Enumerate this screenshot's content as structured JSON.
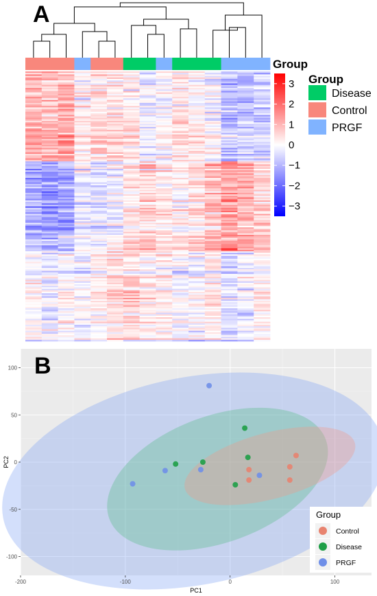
{
  "panel_a": {
    "letter": "A",
    "annotation_label": "Group",
    "legend": {
      "title": "Group",
      "items": [
        {
          "label": "Disease",
          "color": "#00CC66"
        },
        {
          "label": "Control",
          "color": "#F8877C"
        },
        {
          "label": "PRGF",
          "color": "#80B3FF"
        }
      ]
    },
    "colorbar": {
      "ticks": [
        "3",
        "2",
        "1",
        "0",
        "−1",
        "−2",
        "−3"
      ],
      "range": [
        -3.5,
        3.5
      ],
      "low_color": "#0000FF",
      "mid_color": "#FFFFFF",
      "high_color": "#FF0000"
    }
  },
  "panel_b": {
    "letter": "B",
    "legend": {
      "title": "Group",
      "items": [
        {
          "label": "Control",
          "color": "#E8836F"
        },
        {
          "label": "Disease",
          "color": "#1E9E46"
        },
        {
          "label": "PRGF",
          "color": "#6F8FE8"
        }
      ]
    }
  },
  "chart_data": [
    {
      "type": "heatmap",
      "title": "",
      "column_groups": [
        "Control",
        "Control",
        "Control",
        "PRGF",
        "Control",
        "Control",
        "Disease",
        "Disease",
        "PRGF",
        "Disease",
        "Disease",
        "Disease",
        "PRGF",
        "PRGF",
        "PRGF"
      ],
      "group_colors": {
        "Disease": "#00CC66",
        "Control": "#F8877C",
        "PRGF": "#80B3FF"
      },
      "value_range": [
        -3.5,
        3.5
      ],
      "colorbar_ticks": [
        3,
        2,
        1,
        0,
        -1,
        -2,
        -3
      ],
      "row_count": 180,
      "dendrogram": "columns clustered"
    },
    {
      "type": "scatter",
      "title": "",
      "xlabel": "PC1",
      "ylabel": "PC2",
      "xlim": [
        -200,
        135
      ],
      "ylim": [
        -120,
        120
      ],
      "xticks": [
        -200,
        -100,
        0,
        100
      ],
      "yticks": [
        -100,
        -50,
        0,
        50,
        100
      ],
      "grid": true,
      "legend_title": "Group",
      "legend_position": "bottom-right",
      "series": [
        {
          "name": "Control",
          "color": "#E8836F",
          "points": [
            [
              63,
              7
            ],
            [
              57,
              -5
            ],
            [
              57,
              -19
            ],
            [
              18,
              -8
            ],
            [
              18,
              -19
            ]
          ]
        },
        {
          "name": "Disease",
          "color": "#1E9E46",
          "points": [
            [
              14,
              36
            ],
            [
              17,
              5
            ],
            [
              -26,
              0
            ],
            [
              -52,
              -2
            ],
            [
              5,
              -24
            ]
          ]
        },
        {
          "name": "PRGF",
          "color": "#6F8FE8",
          "points": [
            [
              -20,
              81
            ],
            [
              -28,
              -8
            ],
            [
              -62,
              -9
            ],
            [
              -93,
              -23
            ],
            [
              28,
              -14
            ]
          ]
        }
      ],
      "ellipses": [
        {
          "group": "PRGF",
          "center": [
            -35,
            -20
          ],
          "rx": 185,
          "ry": 110,
          "angle_deg": 11
        },
        {
          "group": "Disease",
          "center": [
            -12,
            -18
          ],
          "rx": 110,
          "ry": 67,
          "angle_deg": 20
        },
        {
          "group": "Control",
          "center": [
            38,
            -4
          ],
          "rx": 84,
          "ry": 35,
          "angle_deg": 15
        }
      ]
    }
  ]
}
